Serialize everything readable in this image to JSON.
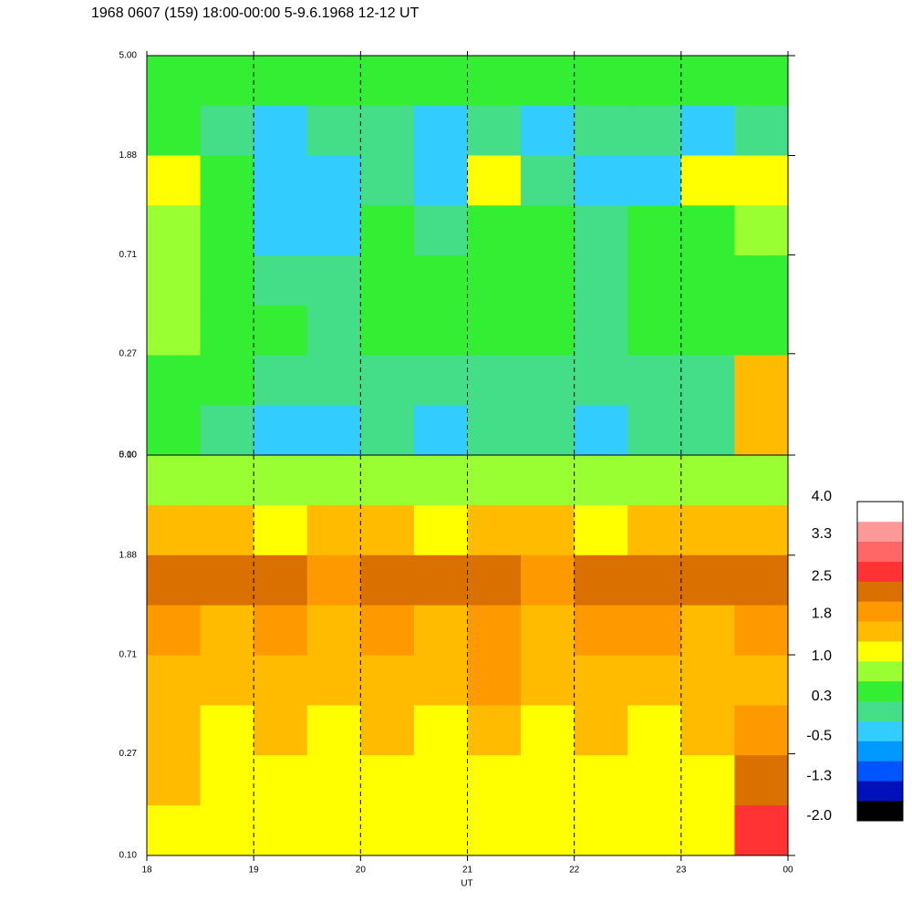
{
  "chart_data": [
    {
      "type": "heatmap",
      "title": "1968 0607 (159) 18:00-00:00 5-9.6.1968  12-12 UT",
      "ylim": [
        0.1,
        5
      ],
      "ylog": true,
      "yticks": [
        {
          "value": 5,
          "label": "5.00"
        },
        1.88,
        0.71,
        0.27,
        {
          "value": 0.1,
          "label": "0.10"
        }
      ],
      "z": [
        [
          0.5,
          0.4,
          0.4,
          0.3,
          0.4,
          0.3,
          0.4,
          0.3,
          0.3,
          0.4,
          0.3,
          0.4
        ],
        [
          0.4,
          0.2,
          -0.2,
          -0.1,
          0.1,
          -0.3,
          0.0,
          -0.2,
          -0.1,
          0.1,
          -0.3,
          0.2
        ],
        [
          1.1,
          0.4,
          -0.3,
          -0.4,
          0.2,
          -0.3,
          1.1,
          0.1,
          -0.4,
          -0.2,
          1.1,
          1.1
        ],
        [
          0.7,
          0.5,
          -0.2,
          -0.3,
          0.4,
          0.0,
          0.6,
          0.3,
          -0.1,
          0.3,
          0.5,
          0.7
        ],
        [
          0.8,
          0.4,
          0.1,
          0.0,
          0.5,
          0.3,
          0.4,
          0.3,
          0.0,
          0.4,
          0.4,
          0.6
        ],
        [
          0.7,
          0.4,
          0.3,
          0.2,
          0.4,
          0.3,
          0.4,
          0.4,
          0.2,
          0.4,
          0.4,
          0.5
        ],
        [
          0.5,
          0.3,
          0.1,
          0.0,
          0.2,
          0.1,
          0.1,
          0.1,
          0.0,
          0.1,
          0.2,
          1.5
        ],
        [
          0.3,
          0.1,
          -0.2,
          -0.3,
          0.0,
          -0.2,
          -0.1,
          -0.1,
          -0.2,
          -0.1,
          0.0,
          1.5
        ]
      ]
    },
    {
      "type": "heatmap",
      "xlabel": "UT",
      "xlim": [
        18,
        24
      ],
      "xticks": [
        18,
        19,
        20,
        21,
        22,
        23,
        {
          "value": 24,
          "label": "00"
        }
      ],
      "grid": true,
      "ylim": [
        0.1,
        5
      ],
      "ylog": true,
      "yticks": [
        {
          "value": 5,
          "label": "5.00"
        },
        1.88,
        0.71,
        0.27,
        {
          "value": 0.1,
          "label": "0.10"
        }
      ],
      "z": [
        [
          0.8,
          0.9,
          0.7,
          0.8,
          0.9,
          0.7,
          0.8,
          0.9,
          0.7,
          0.8,
          0.9,
          0.8
        ],
        [
          1.5,
          1.4,
          1.3,
          1.5,
          1.4,
          1.3,
          1.5,
          1.4,
          1.3,
          1.5,
          1.4,
          1.4
        ],
        [
          2.2,
          2.2,
          2.2,
          2.1,
          2.2,
          2.2,
          2.2,
          2.0,
          2.2,
          2.2,
          2.2,
          2.2
        ],
        [
          1.8,
          1.7,
          1.8,
          1.6,
          1.8,
          1.7,
          1.8,
          1.6,
          1.8,
          1.8,
          1.7,
          1.8
        ],
        [
          1.7,
          1.5,
          1.6,
          1.4,
          1.6,
          1.5,
          1.8,
          1.4,
          1.6,
          1.5,
          1.6,
          1.7
        ],
        [
          1.6,
          1.3,
          1.4,
          1.2,
          1.4,
          1.3,
          1.5,
          1.3,
          1.4,
          1.3,
          1.5,
          1.9
        ],
        [
          1.4,
          1.2,
          1.2,
          1.1,
          1.3,
          1.1,
          1.3,
          1.2,
          1.2,
          1.1,
          1.3,
          2.3
        ],
        [
          1.3,
          1.1,
          1.1,
          1.0,
          1.2,
          1.0,
          1.2,
          1.1,
          1.1,
          1.0,
          1.2,
          2.6
        ]
      ]
    },
    {
      "type": "colorbar",
      "ylim": [
        -2,
        4
      ],
      "yticks": [
        {
          "value": -2,
          "label": "-2.0"
        },
        {
          "value": -1.25,
          "label": "-1.3"
        },
        -0.5,
        {
          "value": 0.25,
          "label": "0.3"
        },
        {
          "value": 1,
          "label": "1.0"
        },
        1.8,
        2.5,
        3.3,
        {
          "value": 4,
          "label": "4.0"
        }
      ],
      "colors": [
        "#000000",
        "#0011bb",
        "#0055ff",
        "#0099ff",
        "#33ccff",
        "#44dd88",
        "#33ee33",
        "#99ff33",
        "#ffff00",
        "#ffbb00",
        "#ff9900",
        "#d97000",
        "#ff3333",
        "#ff6666",
        "#ff9999",
        "#ffffff"
      ]
    }
  ]
}
